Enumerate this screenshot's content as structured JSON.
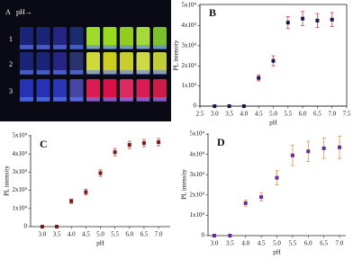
{
  "photo": {
    "title": "A",
    "caption": "pH→",
    "rows": [
      "1",
      "2",
      "3"
    ]
  },
  "chart_data": [
    {
      "type": "scatter",
      "title": "B",
      "x_label": "pH",
      "y_label": "PL intensity",
      "x": [
        3.0,
        3.5,
        4.0,
        4.5,
        5.0,
        5.5,
        6.0,
        6.5,
        7.0
      ],
      "values": [
        0,
        0,
        0,
        14000,
        22500,
        41500,
        43500,
        42500,
        43000
      ],
      "errors": [
        0,
        0,
        0,
        1500,
        2500,
        3000,
        3500,
        3500,
        3500
      ],
      "color": "#1a1a4a",
      "error_color": "#d04040",
      "xlim": [
        2.5,
        7.5
      ],
      "xticks": [
        2.5,
        {
          "value": 3,
          "label": "3.0"
        },
        3.5,
        {
          "value": 4,
          "label": "4.0"
        },
        4.5,
        {
          "value": 5,
          "label": "5.0"
        },
        5.5,
        {
          "value": 6,
          "label": "6.0"
        },
        6.5,
        {
          "value": 7,
          "label": "7.0"
        },
        7.5
      ],
      "ylim": [
        0,
        50500
      ],
      "yticks": [
        0,
        {
          "value": 10000,
          "label": "1x10⁴"
        },
        {
          "value": 20000,
          "label": "2x10⁴"
        },
        {
          "value": 30000,
          "label": "3x10⁴"
        },
        {
          "value": 40000,
          "label": "4x10⁴"
        },
        {
          "value": 50000,
          "label": "5x10⁴"
        }
      ]
    },
    {
      "type": "scatter",
      "title": "C",
      "x_label": "pH",
      "y_label": "PL intensity",
      "x": [
        3.0,
        3.5,
        4.0,
        4.5,
        5.0,
        5.5,
        6.0,
        6.5,
        7.0
      ],
      "values": [
        0,
        0,
        14000,
        19000,
        29500,
        41000,
        45000,
        46000,
        46500
      ],
      "errors": [
        0,
        0,
        1200,
        1500,
        1800,
        2000,
        2000,
        2000,
        2000
      ],
      "color": "#7a1a1a",
      "error_color": "#c05050",
      "xlim": [
        2.6,
        7.4
      ],
      "xticks": [
        {
          "value": 3,
          "label": "3.0"
        },
        3.5,
        {
          "value": 4,
          "label": "4.0"
        },
        4.5,
        {
          "value": 5,
          "label": "5.0"
        },
        5.5,
        {
          "value": 6,
          "label": "6.0"
        },
        6.5,
        {
          "value": 7,
          "label": "7.0"
        }
      ],
      "ylim": [
        0,
        50500
      ],
      "yticks": [
        0,
        {
          "value": 10000,
          "label": "1x10⁴"
        },
        {
          "value": 20000,
          "label": "2x10⁴"
        },
        {
          "value": 30000,
          "label": "3x10⁴"
        },
        {
          "value": 40000,
          "label": "4x10⁴"
        },
        {
          "value": 50000,
          "label": "5x10⁴"
        }
      ]
    },
    {
      "type": "scatter",
      "title": "D",
      "x_label": "pH",
      "y_label": "PL intensity",
      "x": [
        3.0,
        3.5,
        4.0,
        4.5,
        5.0,
        5.5,
        6.0,
        6.5,
        7.0
      ],
      "values": [
        0,
        0,
        16000,
        19000,
        28500,
        39500,
        41500,
        43000,
        43500
      ],
      "errors": [
        0,
        0,
        1500,
        2000,
        3500,
        5000,
        5000,
        5000,
        5500
      ],
      "color": "#6a2a9a",
      "error_color": "#e0904a",
      "xlim": [
        2.8,
        7.2
      ],
      "xticks": [
        {
          "value": 3,
          "label": "3.0"
        },
        3.5,
        {
          "value": 4,
          "label": "4.0"
        },
        4.5,
        {
          "value": 5,
          "label": "5.0"
        },
        5.5,
        {
          "value": 6,
          "label": "6.0"
        },
        6.5,
        {
          "value": 7,
          "label": "7.0"
        }
      ],
      "ylim": [
        0,
        50500
      ],
      "yticks": [
        0,
        {
          "value": 10000,
          "label": "1x10⁴"
        },
        {
          "value": 20000,
          "label": "2x10⁴"
        },
        {
          "value": 30000,
          "label": "3x10⁴"
        },
        {
          "value": 40000,
          "label": "4x10⁴"
        },
        {
          "value": 50000,
          "label": "5x10⁴"
        }
      ]
    }
  ]
}
